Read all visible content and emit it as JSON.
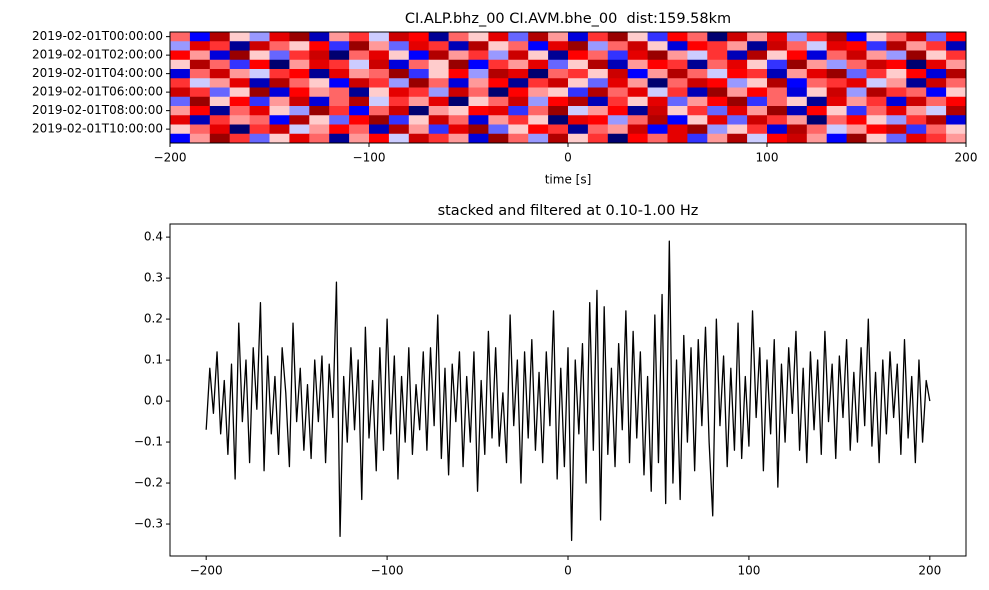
{
  "chart_data": [
    {
      "type": "heatmap",
      "title": "CI.ALP.bhz_00 CI.AVM.bhe_00  dist:159.58km",
      "xlabel": "time [s]",
      "xlim": [
        -200,
        200
      ],
      "xticks": [
        {
          "value": -200,
          "label": "−200"
        },
        {
          "value": -100,
          "label": "−100"
        },
        0,
        100,
        200
      ],
      "categories": [
        "2019-02-01T00:00:00",
        null,
        "2019-02-01T02:00:00",
        null,
        "2019-02-01T04:00:00",
        null,
        "2019-02-01T06:00:00",
        null,
        "2019-02-01T08:00:00",
        null,
        "2019-02-01T10:00:00",
        null
      ],
      "zlim": [
        -1,
        1
      ],
      "colors": [
        "#00004c",
        "#0000ff",
        "#ffffff",
        "#ff0000",
        "#7f0000"
      ],
      "z": [
        [
          0.3,
          -0.5,
          0.8,
          0.1,
          -0.2,
          0.6,
          0.9,
          -0.7,
          0.2,
          0.4,
          -0.1,
          0.7,
          0.5,
          -0.8,
          0.3,
          0.1,
          0.6,
          -0.3,
          0.8,
          0.2,
          -0.6,
          0.4,
          0.9,
          0.1,
          -0.4,
          0.5,
          0.3,
          -0.9,
          0.7,
          0.2,
          0.6,
          -0.2,
          0.4,
          0.8,
          -0.5,
          0.1,
          0.3,
          0.7,
          -0.3,
          0.5
        ],
        [
          -0.2,
          0.6,
          0.4,
          -0.8,
          0.7,
          0.3,
          0.1,
          0.5,
          -0.4,
          0.9,
          0.2,
          -0.3,
          0.6,
          0.4,
          -0.7,
          0.8,
          0.1,
          0.3,
          -0.5,
          0.6,
          0.9,
          -0.2,
          0.3,
          0.7,
          0.1,
          -0.6,
          0.5,
          0.4,
          0.2,
          -0.8,
          0.7,
          0.3,
          -0.1,
          0.6,
          0.5,
          -0.4,
          0.8,
          0.2,
          0.4,
          -0.7
        ],
        [
          0.5,
          0.2,
          -0.6,
          0.9,
          0.1,
          -0.3,
          0.4,
          0.7,
          -0.9,
          0.3,
          0.6,
          0.1,
          -0.5,
          0.8,
          0.2,
          0.4,
          -0.2,
          0.7,
          0.1,
          -0.8,
          0.5,
          0.3,
          -0.4,
          0.6,
          0.9,
          0.2,
          -0.1,
          0.4,
          -0.7,
          0.8,
          0.1,
          0.5,
          -0.6,
          0.3,
          0.7,
          0.2,
          -0.2,
          0.9,
          0.1,
          0.4
        ],
        [
          0.1,
          0.8,
          0.3,
          -0.4,
          0.5,
          -0.9,
          0.2,
          0.6,
          0.4,
          -0.1,
          0.7,
          -0.6,
          0.3,
          0.1,
          0.9,
          -0.5,
          0.4,
          0.2,
          0.6,
          -0.3,
          0.1,
          0.8,
          -0.7,
          0.2,
          0.5,
          0.4,
          -0.8,
          0.3,
          0.6,
          0.1,
          -0.4,
          0.9,
          0.2,
          -0.2,
          0.3,
          0.7,
          0.5,
          -0.9,
          0.6,
          0.2
        ],
        [
          -0.6,
          0.3,
          0.7,
          0.2,
          -0.1,
          0.4,
          0.5,
          -0.8,
          0.6,
          0.2,
          0.3,
          0.9,
          -0.4,
          0.1,
          0.5,
          -0.2,
          0.8,
          0.6,
          -0.9,
          0.3,
          0.4,
          0.1,
          0.7,
          -0.5,
          0.2,
          0.8,
          0.3,
          -0.1,
          0.5,
          0.4,
          -0.7,
          0.2,
          0.6,
          0.9,
          -0.3,
          0.4,
          0.1,
          0.5,
          -0.6,
          0.8
        ],
        [
          0.4,
          -0.1,
          0.2,
          0.6,
          -0.7,
          0.8,
          0.3,
          0.1,
          -0.5,
          0.7,
          0.4,
          -0.2,
          0.9,
          0.3,
          -0.6,
          0.2,
          0.5,
          -0.8,
          0.4,
          0.7,
          0.1,
          -0.3,
          0.6,
          0.2,
          -0.9,
          0.3,
          0.7,
          0.5,
          -0.2,
          0.1,
          0.8,
          -0.5,
          0.3,
          0.4,
          0.6,
          -0.1,
          0.2,
          -0.8,
          0.7,
          0.3
        ],
        [
          0.7,
          0.4,
          -0.3,
          0.1,
          0.9,
          -0.6,
          0.5,
          0.2,
          0.3,
          -0.8,
          0.1,
          0.6,
          0.4,
          -0.2,
          0.7,
          0.3,
          -0.9,
          0.5,
          0.2,
          0.1,
          -0.4,
          0.8,
          0.3,
          0.6,
          -0.1,
          0.4,
          -0.7,
          0.9,
          0.2,
          0.5,
          0.3,
          -0.6,
          0.1,
          0.7,
          -0.2,
          0.8,
          0.4,
          0.3,
          -0.5,
          0.1
        ],
        [
          -0.3,
          0.9,
          0.1,
          0.5,
          -0.4,
          0.2,
          0.7,
          -0.6,
          0.3,
          0.8,
          -0.1,
          0.4,
          0.2,
          0.6,
          -0.9,
          0.1,
          0.3,
          0.7,
          -0.2,
          0.5,
          0.8,
          -0.7,
          0.4,
          0.1,
          0.6,
          -0.3,
          0.2,
          0.5,
          0.9,
          -0.4,
          0.3,
          0.1,
          -0.8,
          0.6,
          0.2,
          0.4,
          -0.6,
          0.7,
          0.3,
          0.5
        ],
        [
          0.2,
          0.5,
          -0.8,
          0.3,
          0.6,
          0.1,
          -0.2,
          0.9,
          0.4,
          -0.5,
          0.3,
          0.7,
          -0.9,
          0.2,
          0.1,
          0.5,
          0.6,
          -0.4,
          0.3,
          0.9,
          -0.1,
          0.2,
          0.5,
          -0.8,
          0.7,
          0.1,
          0.4,
          -0.3,
          0.6,
          0.2,
          0.9,
          -0.7,
          0.5,
          0.1,
          -0.4,
          0.3,
          0.6,
          0.2,
          -0.1,
          0.8
        ],
        [
          0.6,
          -0.7,
          0.4,
          0.2,
          0.3,
          -0.5,
          0.8,
          0.1,
          -0.3,
          0.5,
          0.9,
          -0.4,
          0.1,
          0.7,
          0.3,
          -0.6,
          0.2,
          0.4,
          0.1,
          -0.9,
          0.6,
          0.5,
          -0.2,
          0.3,
          0.8,
          -0.5,
          0.1,
          0.6,
          -0.3,
          0.7,
          0.4,
          0.2,
          -0.9,
          0.3,
          0.5,
          0.1,
          -0.2,
          0.4,
          0.8,
          -0.6
        ],
        [
          0.1,
          0.3,
          0.6,
          -0.9,
          0.4,
          0.7,
          -0.1,
          0.2,
          0.5,
          0.3,
          -0.7,
          0.8,
          0.2,
          -0.4,
          0.6,
          0.9,
          -0.3,
          0.1,
          0.5,
          0.4,
          -0.8,
          0.3,
          0.2,
          0.7,
          -0.5,
          0.6,
          0.9,
          -0.2,
          0.1,
          0.4,
          -0.6,
          0.8,
          0.3,
          -0.1,
          0.2,
          0.5,
          0.7,
          -0.4,
          0.3,
          0.1
        ],
        [
          -0.5,
          0.2,
          0.9,
          0.4,
          -0.3,
          0.1,
          0.6,
          0.3,
          -0.8,
          0.2,
          0.5,
          -0.1,
          0.7,
          0.4,
          0.2,
          -0.6,
          0.9,
          0.3,
          -0.2,
          0.8,
          0.1,
          0.4,
          -0.9,
          0.5,
          0.3,
          0.6,
          -0.4,
          0.2,
          0.8,
          -0.1,
          0.5,
          0.7,
          0.2,
          -0.5,
          0.9,
          0.1,
          -0.3,
          0.6,
          0.4,
          0.2
        ]
      ]
    },
    {
      "type": "line",
      "title": "stacked and filtered at 0.10-1.00 Hz",
      "xlim": [
        -220,
        220
      ],
      "ylim": [
        -0.378,
        0.432
      ],
      "xticks": [
        {
          "value": -200,
          "label": "−200"
        },
        {
          "value": -100,
          "label": "−100"
        },
        0,
        100,
        200
      ],
      "yticks": [
        {
          "value": -0.3,
          "label": "−0.3"
        },
        {
          "value": -0.2,
          "label": "−0.2"
        },
        {
          "value": -0.1,
          "label": "−0.1"
        },
        {
          "value": 0,
          "label": "0.0"
        },
        0.1,
        0.2,
        0.3,
        0.4
      ],
      "color": "#000000",
      "x": [
        -200,
        -198,
        -196,
        -194,
        -192,
        -190,
        -188,
        -186,
        -184,
        -182,
        -180,
        -178,
        -176,
        -174,
        -172,
        -170,
        -168,
        -166,
        -164,
        -162,
        -160,
        -158,
        -156,
        -154,
        -152,
        -150,
        -148,
        -146,
        -144,
        -142,
        -140,
        -138,
        -136,
        -134,
        -132,
        -130,
        -128,
        -126,
        -124,
        -122,
        -120,
        -118,
        -116,
        -114,
        -112,
        -110,
        -108,
        -106,
        -104,
        -102,
        -100,
        -98,
        -96,
        -94,
        -92,
        -90,
        -88,
        -86,
        -84,
        -82,
        -80,
        -78,
        -76,
        -74,
        -72,
        -70,
        -68,
        -66,
        -64,
        -62,
        -60,
        -58,
        -56,
        -54,
        -52,
        -50,
        -48,
        -46,
        -44,
        -42,
        -40,
        -38,
        -36,
        -34,
        -32,
        -30,
        -28,
        -26,
        -24,
        -22,
        -20,
        -18,
        -16,
        -14,
        -12,
        -10,
        -8,
        -6,
        -4,
        -2,
        0,
        2,
        4,
        6,
        8,
        10,
        12,
        14,
        16,
        18,
        20,
        22,
        24,
        26,
        28,
        30,
        32,
        34,
        36,
        38,
        40,
        42,
        44,
        46,
        48,
        50,
        52,
        54,
        56,
        58,
        60,
        62,
        64,
        66,
        68,
        70,
        72,
        74,
        76,
        78,
        80,
        82,
        84,
        86,
        88,
        90,
        92,
        94,
        96,
        98,
        100,
        102,
        104,
        106,
        108,
        110,
        112,
        114,
        116,
        118,
        120,
        122,
        124,
        126,
        128,
        130,
        132,
        134,
        136,
        138,
        140,
        142,
        144,
        146,
        148,
        150,
        152,
        154,
        156,
        158,
        160,
        162,
        164,
        166,
        168,
        170,
        172,
        174,
        176,
        178,
        180,
        182,
        184,
        186,
        188,
        190,
        192,
        194,
        196,
        198,
        200
      ],
      "values": [
        -0.07,
        0.08,
        -0.03,
        0.12,
        -0.08,
        0.05,
        -0.13,
        0.09,
        -0.19,
        0.19,
        -0.05,
        0.1,
        -0.15,
        0.13,
        -0.02,
        0.24,
        -0.17,
        0.11,
        -0.08,
        0.06,
        -0.13,
        0.13,
        0.02,
        -0.16,
        0.19,
        -0.05,
        0.08,
        -0.12,
        0.04,
        -0.14,
        0.1,
        -0.05,
        0.11,
        -0.15,
        0.09,
        -0.04,
        0.29,
        -0.33,
        0.06,
        -0.1,
        0.13,
        -0.07,
        0.1,
        -0.24,
        0.18,
        -0.09,
        0.05,
        -0.17,
        0.13,
        -0.12,
        0.2,
        -0.08,
        0.11,
        -0.19,
        0.06,
        -0.1,
        0.13,
        -0.13,
        0.04,
        -0.07,
        0.12,
        -0.12,
        0.13,
        -0.06,
        0.21,
        -0.14,
        0.08,
        -0.18,
        0.09,
        -0.05,
        0.12,
        -0.16,
        0.06,
        -0.1,
        0.12,
        -0.22,
        0.05,
        -0.13,
        0.17,
        -0.09,
        0.13,
        -0.11,
        0.02,
        -0.15,
        0.21,
        -0.06,
        0.1,
        -0.2,
        0.12,
        -0.09,
        0.15,
        -0.12,
        0.07,
        -0.15,
        0.12,
        -0.06,
        0.22,
        -0.19,
        0.08,
        -0.16,
        0.13,
        -0.34,
        0.1,
        -0.08,
        0.14,
        -0.2,
        0.24,
        -0.12,
        0.27,
        -0.29,
        0.23,
        -0.13,
        0.08,
        -0.16,
        0.14,
        -0.07,
        0.22,
        -0.15,
        0.17,
        -0.09,
        0.12,
        -0.18,
        0.06,
        -0.22,
        0.21,
        -0.15,
        0.26,
        -0.25,
        0.39,
        -0.2,
        0.1,
        -0.24,
        0.16,
        -0.1,
        0.13,
        -0.17,
        0.15,
        -0.06,
        0.18,
        -0.1,
        -0.28,
        0.2,
        -0.06,
        0.11,
        -0.16,
        0.08,
        -0.12,
        0.19,
        -0.14,
        0.06,
        -0.11,
        0.22,
        -0.04,
        0.13,
        -0.17,
        0.1,
        -0.08,
        0.15,
        -0.21,
        0.09,
        -0.1,
        0.13,
        -0.03,
        0.17,
        -0.12,
        0.08,
        -0.15,
        0.12,
        -0.07,
        0.1,
        -0.13,
        0.17,
        -0.05,
        0.09,
        -0.14,
        0.11,
        -0.04,
        0.15,
        -0.12,
        0.07,
        -0.1,
        0.13,
        -0.06,
        0.2,
        -0.11,
        0.07,
        -0.15,
        0.1,
        -0.08,
        0.12,
        -0.04,
        0.09,
        -0.13,
        0.15,
        -0.09,
        0.06,
        -0.15,
        0.1,
        -0.1,
        0.05,
        0.0
      ]
    }
  ]
}
